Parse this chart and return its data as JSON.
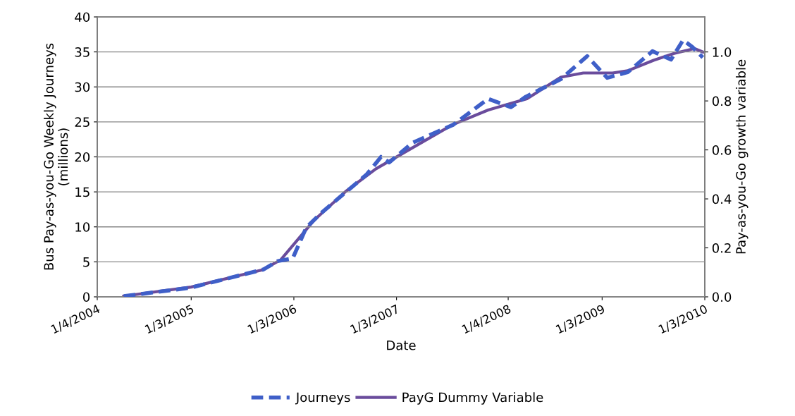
{
  "chart_data": {
    "type": "line",
    "xlabel": "Date",
    "ylabel": "Bus Pay-as-you-Go Weekly Journeys\n(millions)",
    "y2label": "Pay-as-you-Go growth variable",
    "xlim": [
      "2004-04-01",
      "2010-03-01"
    ],
    "xticks": [
      {
        "value": "2004-04-01",
        "label": "1/4/2004"
      },
      {
        "value": "2005-03-01",
        "label": "1/3/2005"
      },
      {
        "value": "2006-03-01",
        "label": "1/3/2006"
      },
      {
        "value": "2007-03-01",
        "label": "1/3/2007"
      },
      {
        "value": "2008-04-01",
        "label": "1/4/2008"
      },
      {
        "value": "2009-03-01",
        "label": "1/3/2009"
      },
      {
        "value": "2010-03-01",
        "label": "1/3/2010"
      }
    ],
    "ylim": [
      0,
      40
    ],
    "yticks": [
      0,
      5,
      10,
      15,
      20,
      25,
      30,
      35,
      40
    ],
    "y2lim": [
      0,
      1.143
    ],
    "y2ticks": [
      {
        "value": 0,
        "label": "0.0"
      },
      {
        "value": 0.2,
        "label": "0.2"
      },
      {
        "value": 0.4,
        "label": "0.4"
      },
      {
        "value": 0.6,
        "label": "0.6"
      },
      {
        "value": 0.8,
        "label": "0.8"
      },
      {
        "value": 1.0,
        "label": "1.0"
      }
    ],
    "grid": "y",
    "legend": "bottom",
    "series": [
      {
        "name": "Journeys",
        "color": "#3f5fc8",
        "line_style": "dashed",
        "x": [
          "2004-07-04",
          "2005-02-26",
          "2005-11-12",
          "2006-01-02",
          "2006-02-25",
          "2006-04-14",
          "2006-06-04",
          "2006-08-31",
          "2006-11-15",
          "2007-01-05",
          "2007-02-03",
          "2007-04-26",
          "2007-09-19",
          "2008-01-21",
          "2008-04-11",
          "2008-06-03",
          "2008-10-05",
          "2009-01-07",
          "2009-03-19",
          "2009-05-31",
          "2009-08-27",
          "2009-11-01",
          "2009-12-14",
          "2010-01-16",
          "2010-02-22"
        ],
        "values": [
          0.1,
          1.3,
          3.9,
          5.1,
          5.5,
          9.9,
          11.9,
          14.9,
          17.5,
          20.0,
          19.2,
          22.0,
          24.6,
          28.3,
          27.1,
          28.6,
          31.1,
          34.4,
          31.3,
          32.1,
          35.1,
          33.9,
          36.7,
          35.7,
          34.2
        ]
      },
      {
        "name": "PayG Dummy Variable",
        "color": "#6a4c9c",
        "line_style": "solid",
        "axis": "y2",
        "x": [
          "2004-07-04",
          "2005-03-01",
          "2005-11-12",
          "2006-01-13",
          "2006-05-13",
          "2006-08-31",
          "2006-12-18",
          "2007-03-01",
          "2007-09-16",
          "2008-01-21",
          "2008-06-07",
          "2008-10-05",
          "2008-12-24",
          "2009-04-07",
          "2009-05-31",
          "2009-08-31",
          "2009-11-12",
          "2010-01-24",
          "2010-02-22"
        ],
        "values": [
          0.003,
          0.04,
          0.111,
          0.151,
          0.314,
          0.429,
          0.523,
          0.571,
          0.703,
          0.763,
          0.809,
          0.897,
          0.914,
          0.914,
          0.923,
          0.966,
          0.994,
          1.014,
          1.0
        ]
      }
    ]
  }
}
